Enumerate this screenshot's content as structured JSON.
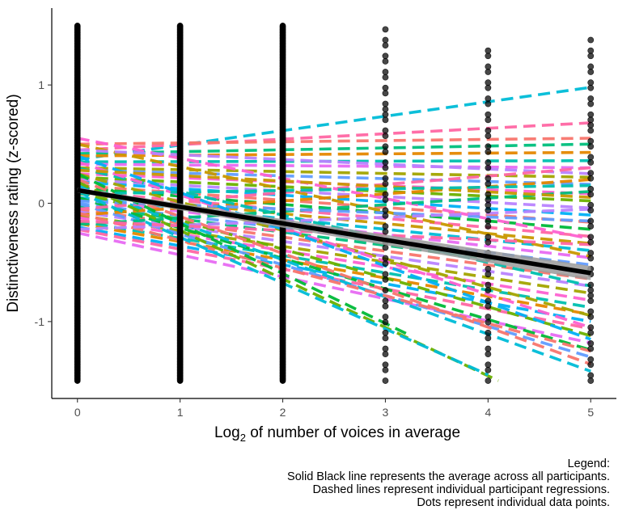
{
  "chart_data": {
    "type": "scatter",
    "xlabel": {
      "main": "Log",
      "sub": "2",
      "rest": " of number of voices in average"
    },
    "ylabel": "Distinctiveness rating (z-scored)",
    "xlim": [
      -0.25,
      5.25
    ],
    "ylim": [
      -1.65,
      1.65
    ],
    "x_ticks": [
      0,
      1,
      2,
      3,
      4,
      5
    ],
    "y_ticks": [
      -1,
      0,
      1
    ],
    "grid": false,
    "points": {
      "x": [
        0,
        1,
        2,
        3,
        4,
        5
      ],
      "y_min": [
        -1.5,
        -1.5,
        -1.5,
        -1.5,
        -1.5,
        -1.5
      ],
      "y_max": [
        1.5,
        1.5,
        1.5,
        1.47,
        1.33,
        1.38
      ],
      "color": "#000000"
    },
    "average_line": {
      "x": [
        0,
        5
      ],
      "y": [
        0.11,
        -0.59
      ],
      "color": "#000000",
      "ribbon_halfwidth": [
        0.02,
        0.06
      ]
    },
    "participant_lines": {
      "style": "dashed",
      "colors": [
        "#F8766D",
        "#E58700",
        "#C99800",
        "#A3A500",
        "#6BB100",
        "#00BA38",
        "#00BF7D",
        "#00C0AF",
        "#00BCD8",
        "#00B0F6",
        "#619CFF",
        "#B983FF",
        "#E76BF3",
        "#FD61D1",
        "#FF67A4"
      ],
      "lines": [
        {
          "y0": 0.37,
          "y5": 0.98,
          "color": "#00BCD8"
        },
        {
          "y0": 0.45,
          "y5": 0.68,
          "color": "#FF67A4"
        },
        {
          "y0": 0.5,
          "y5": 0.55,
          "color": "#F8766D"
        },
        {
          "y0": 0.42,
          "y5": 0.5,
          "color": "#00BF7D"
        },
        {
          "y0": 0.4,
          "y5": 0.43,
          "color": "#E58700"
        },
        {
          "y0": 0.35,
          "y5": 0.36,
          "color": "#00C0AF"
        },
        {
          "y0": 0.33,
          "y5": 0.3,
          "color": "#E76BF3"
        },
        {
          "y0": 0.3,
          "y5": 0.22,
          "color": "#A3A500"
        },
        {
          "y0": 0.28,
          "y5": 0.16,
          "color": "#619CFF"
        },
        {
          "y0": 0.25,
          "y5": 0.08,
          "color": "#FD61D1"
        },
        {
          "y0": 0.22,
          "y5": 0.02,
          "color": "#6BB100"
        },
        {
          "y0": 0.2,
          "y5": -0.04,
          "color": "#B983FF"
        },
        {
          "y0": 0.18,
          "y5": -0.1,
          "color": "#00B0F6"
        },
        {
          "y0": 0.15,
          "y5": -0.16,
          "color": "#F8766D"
        },
        {
          "y0": 0.13,
          "y5": -0.22,
          "color": "#00BA38"
        },
        {
          "y0": 0.1,
          "y5": -0.28,
          "color": "#FF67A4"
        },
        {
          "y0": 0.08,
          "y5": -0.34,
          "color": "#C99800"
        },
        {
          "y0": 0.05,
          "y5": -0.4,
          "color": "#00BCD8"
        },
        {
          "y0": 0.03,
          "y5": -0.46,
          "color": "#E76BF3"
        },
        {
          "y0": 0.0,
          "y5": -0.52,
          "color": "#619CFF"
        },
        {
          "y0": -0.02,
          "y5": -0.58,
          "color": "#00BF7D"
        },
        {
          "y0": -0.05,
          "y5": -0.64,
          "color": "#F8766D"
        },
        {
          "y0": -0.07,
          "y5": -0.7,
          "color": "#B983FF"
        },
        {
          "y0": -0.1,
          "y5": -0.76,
          "color": "#A3A500"
        },
        {
          "y0": -0.12,
          "y5": -0.82,
          "color": "#FD61D1"
        },
        {
          "y0": -0.15,
          "y5": -0.88,
          "color": "#00C0AF"
        },
        {
          "y0": -0.17,
          "y5": -0.94,
          "color": "#E58700"
        },
        {
          "y0": -0.2,
          "y5": -1.0,
          "color": "#00B0F6"
        },
        {
          "y0": -0.22,
          "y5": -1.06,
          "color": "#FF67A4"
        },
        {
          "y0": 0.1,
          "y5": -1.12,
          "color": "#6BB100"
        },
        {
          "y0": -0.25,
          "y5": -1.18,
          "color": "#E76BF3"
        },
        {
          "y0": 0.05,
          "y5": -1.24,
          "color": "#00BA38"
        },
        {
          "y0": 0.0,
          "y5": -1.3,
          "color": "#619CFF"
        },
        {
          "y0": 0.2,
          "y5": -1.36,
          "color": "#F8766D"
        },
        {
          "y0": 0.15,
          "y5": -1.42,
          "color": "#00BCD8"
        },
        {
          "y0": 0.55,
          "y5": -0.3,
          "color": "#FD61D1"
        },
        {
          "y0": 0.5,
          "y5": -0.45,
          "color": "#C99800"
        },
        {
          "y0": 0.45,
          "y5": 0.25,
          "color": "#B983FF"
        },
        {
          "y0": -0.18,
          "y5": 0.1,
          "color": "#00BF7D"
        },
        {
          "y0": -0.1,
          "y5": 0.2,
          "color": "#E58700"
        },
        {
          "y0": -0.05,
          "y5": 0.3,
          "color": "#FF67A4"
        },
        {
          "y0": 0.02,
          "y5": -0.15,
          "color": "#619CFF"
        },
        {
          "y0": 0.3,
          "y5": -0.7,
          "color": "#00C0AF"
        },
        {
          "y0": 0.25,
          "y5": -0.95,
          "color": "#A3A500"
        },
        {
          "y0": 0.12,
          "y5": -0.6,
          "color": "#E76BF3"
        },
        {
          "y0": 0.35,
          "y5": -1.05,
          "color": "#FD61D1"
        },
        {
          "y0": 0.4,
          "y5": -1.15,
          "color": "#00B0F6"
        },
        {
          "y0": -0.08,
          "y5": -1.25,
          "color": "#F8766D"
        },
        {
          "y0": 0.18,
          "x1": 4.1,
          "y1": -1.5,
          "color": "#6BB100"
        },
        {
          "y0": 0.1,
          "x1": 4.0,
          "y1": -1.45,
          "color": "#00BCD8"
        },
        {
          "y0": 0.25,
          "x1": 3.2,
          "y1": -1.1,
          "color": "#00BA38"
        },
        {
          "y0": -0.22,
          "y5": -0.05,
          "color": "#B983FF"
        },
        {
          "y0": 0.28,
          "y5": 0.05,
          "color": "#C99800"
        },
        {
          "y0": -0.15,
          "y5": -0.35,
          "color": "#FF67A4"
        },
        {
          "y0": 0.08,
          "y5": 0.15,
          "color": "#00C0AF"
        }
      ]
    },
    "legend_title": "Legend:",
    "legend_text": [
      "Solid Black line represents the average across all participants.",
      "Dashed lines represent individual participant regressions.",
      "Dots represent individual data points."
    ]
  }
}
